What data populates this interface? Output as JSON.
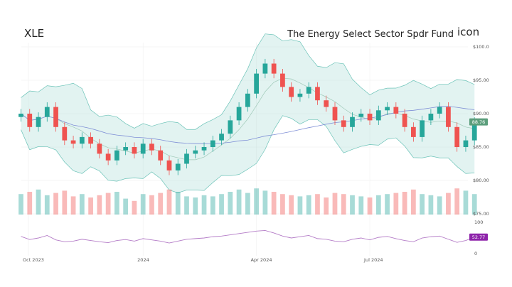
{
  "header": {
    "symbol": "XLE",
    "name": "The Energy Select Sector Spdr Fund",
    "logo_alt": "icon"
  },
  "chart_data": {
    "type": "candlestick",
    "price_axis": {
      "ticks": [
        "$100.0",
        "$95.00",
        "$90.00",
        "$85.00",
        "$80.00",
        "$75.00"
      ],
      "tick_values": [
        100,
        95,
        90,
        85,
        80,
        75
      ]
    },
    "rsi_axis": {
      "ticks": [
        "100",
        "0"
      ],
      "tick_values": [
        100,
        0
      ]
    },
    "x_ticks": [
      {
        "label": "Oct 2023",
        "date": "2023-10-01"
      },
      {
        "label": "2024",
        "date": "2024-01-01"
      },
      {
        "label": "Apr 2024",
        "date": "2024-04-01"
      },
      {
        "label": "Jul 2024",
        "date": "2024-07-01"
      }
    ],
    "last_price": "88.76",
    "last_rsi": "52.77",
    "grid": true,
    "colors": {
      "up": "#26a69a",
      "down": "#ef5350",
      "band": "#9fd8d2",
      "rsi": "#b47cc7",
      "rsi_badge": "#8e24aa",
      "price_badge": "#5c9e7c",
      "ma_long": "#7f8fd6"
    },
    "closes": [
      [
        "2023-09-25",
        90
      ],
      [
        "2023-10-02",
        88
      ],
      [
        "2023-10-09",
        89.5
      ],
      [
        "2023-10-16",
        91
      ],
      [
        "2023-10-23",
        88
      ],
      [
        "2023-10-30",
        86
      ],
      [
        "2023-11-06",
        85.5
      ],
      [
        "2023-11-13",
        86.5
      ],
      [
        "2023-11-20",
        85.5
      ],
      [
        "2023-11-27",
        84
      ],
      [
        "2023-12-04",
        83
      ],
      [
        "2023-12-11",
        84.5
      ],
      [
        "2023-12-18",
        85
      ],
      [
        "2023-12-25",
        84
      ],
      [
        "2024-01-01",
        85.5
      ],
      [
        "2024-01-08",
        84.5
      ],
      [
        "2024-01-15",
        83
      ],
      [
        "2024-01-22",
        81.5
      ],
      [
        "2024-01-29",
        82.5
      ],
      [
        "2024-02-05",
        84
      ],
      [
        "2024-02-12",
        84.5
      ],
      [
        "2024-02-19",
        85
      ],
      [
        "2024-02-26",
        86
      ],
      [
        "2024-03-04",
        87
      ],
      [
        "2024-03-11",
        89
      ],
      [
        "2024-03-18",
        91
      ],
      [
        "2024-03-25",
        93
      ],
      [
        "2024-04-01",
        96
      ],
      [
        "2024-04-08",
        97.5
      ],
      [
        "2024-04-15",
        96
      ],
      [
        "2024-04-22",
        94
      ],
      [
        "2024-04-29",
        92.5
      ],
      [
        "2024-05-06",
        93
      ],
      [
        "2024-05-13",
        94
      ],
      [
        "2024-05-20",
        92
      ],
      [
        "2024-05-27",
        91
      ],
      [
        "2024-06-03",
        89
      ],
      [
        "2024-06-10",
        88
      ],
      [
        "2024-06-17",
        89.5
      ],
      [
        "2024-06-24",
        90
      ],
      [
        "2024-07-01",
        89
      ],
      [
        "2024-07-08",
        90.5
      ],
      [
        "2024-07-15",
        91
      ],
      [
        "2024-07-22",
        90
      ],
      [
        "2024-07-29",
        88
      ],
      [
        "2024-08-05",
        86.5
      ],
      [
        "2024-08-12",
        89
      ],
      [
        "2024-08-19",
        90
      ],
      [
        "2024-08-26",
        91
      ],
      [
        "2024-09-02",
        88
      ],
      [
        "2024-09-09",
        85
      ],
      [
        "2024-09-16",
        86
      ],
      [
        "2024-09-23",
        88.76
      ]
    ],
    "volume_millions": [
      18,
      20,
      22,
      17,
      19,
      21,
      16,
      18,
      15,
      17,
      19,
      20,
      14,
      12,
      18,
      17,
      19,
      22,
      20,
      16,
      15,
      17,
      16,
      18,
      20,
      22,
      19,
      23,
      21,
      20,
      18,
      17,
      16,
      17,
      18,
      15,
      19,
      18,
      17,
      16,
      15,
      17,
      18,
      19,
      20,
      22,
      18,
      17,
      16,
      19,
      23,
      21,
      18
    ],
    "rsi": [
      55,
      45,
      50,
      58,
      44,
      38,
      40,
      46,
      42,
      38,
      35,
      42,
      45,
      40,
      48,
      44,
      40,
      34,
      40,
      46,
      48,
      50,
      54,
      56,
      60,
      64,
      68,
      72,
      74,
      66,
      56,
      50,
      54,
      58,
      48,
      46,
      40,
      38,
      46,
      50,
      44,
      52,
      55,
      48,
      42,
      38,
      50,
      54,
      56,
      46,
      36,
      42,
      52.77
    ]
  }
}
